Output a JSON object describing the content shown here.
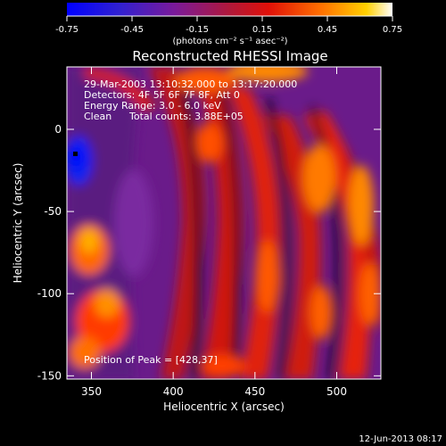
{
  "chart_data": {
    "type": "heatmap",
    "title": "Reconstructed RHESSI Image",
    "xlabel": "Heliocentric X (arcsec)",
    "ylabel": "Heliocentric Y (arcsec)",
    "xlim": [
      335,
      527
    ],
    "ylim": [
      -152,
      38
    ],
    "xticks": [
      350,
      400,
      450,
      500
    ],
    "yticks": [
      0,
      -50,
      -100,
      -150
    ],
    "xtick_labels": [
      "350",
      "400",
      "450",
      "500"
    ],
    "ytick_labels": [
      "0",
      "-50",
      "-100",
      "-150"
    ],
    "colorbar": {
      "range": [
        -0.75,
        0.75
      ],
      "ticks": [
        -0.75,
        -0.45,
        -0.15,
        0.15,
        0.45,
        0.75
      ],
      "tick_labels": [
        "-0.75",
        "-0.45",
        "-0.15",
        "0.15",
        "0.45",
        "0.75"
      ],
      "units_label": "(photons cm⁻² s⁻¹ asec⁻²)",
      "colors": [
        "#0000ff",
        "#5020c0",
        "#7a1a9a",
        "#c81810",
        "#ff6a00",
        "#ffe000",
        "#ffffff"
      ]
    },
    "annotations": {
      "time_range": "29-Mar-2003 13:10:32.000 to 13:17:20.000",
      "detectors": "Detectors: 4F 5F 6F 7F 8F, Att 0",
      "energy": "Energy Range: 3.0 - 6.0 keV",
      "clean": "Clean",
      "counts": "Total counts: 3.88E+05",
      "peak": "Position of Peak = [428,37]"
    },
    "peak": {
      "x": 428,
      "y": 37
    },
    "blue_region": {
      "x": 341,
      "y": -15
    },
    "timestamp": "12-Jun-2013 08:17"
  }
}
